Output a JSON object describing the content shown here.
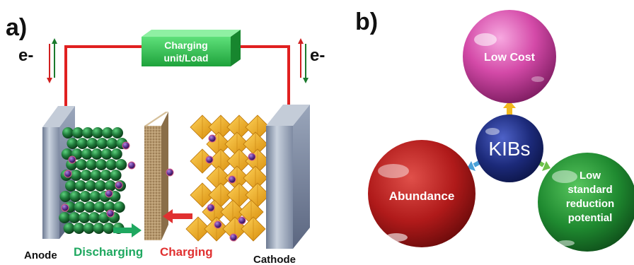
{
  "panel_a": {
    "label": "a)",
    "electron_label_left": "e-",
    "electron_label_right": "e-",
    "charging_unit_line1": "Charging",
    "charging_unit_line2": "unit/Load",
    "anode_label": "Anode",
    "cathode_label": "Cathode",
    "discharging_label": "Discharging",
    "charging_label": "Charging",
    "colors": {
      "wire": "#e02020",
      "charging_unit": "#2fbf4a",
      "anode_spheres": "#1f7a3a",
      "cathode_octahedra": "#f2a818",
      "ion": "#5a2d8c",
      "discharging_arrow": "#1fa860",
      "charging_arrow": "#e03030"
    }
  },
  "panel_b": {
    "label": "b)",
    "center_label": "KIBs",
    "top_label": "Low Cost",
    "left_label": "Abundance",
    "right_line1": "Low",
    "right_line2": "standard",
    "right_line3": "reduction",
    "right_line4": "potential",
    "colors": {
      "center": "#1c2a7a",
      "top": "#d44aa8",
      "left": "#b01a1a",
      "right": "#1f8a30"
    }
  }
}
